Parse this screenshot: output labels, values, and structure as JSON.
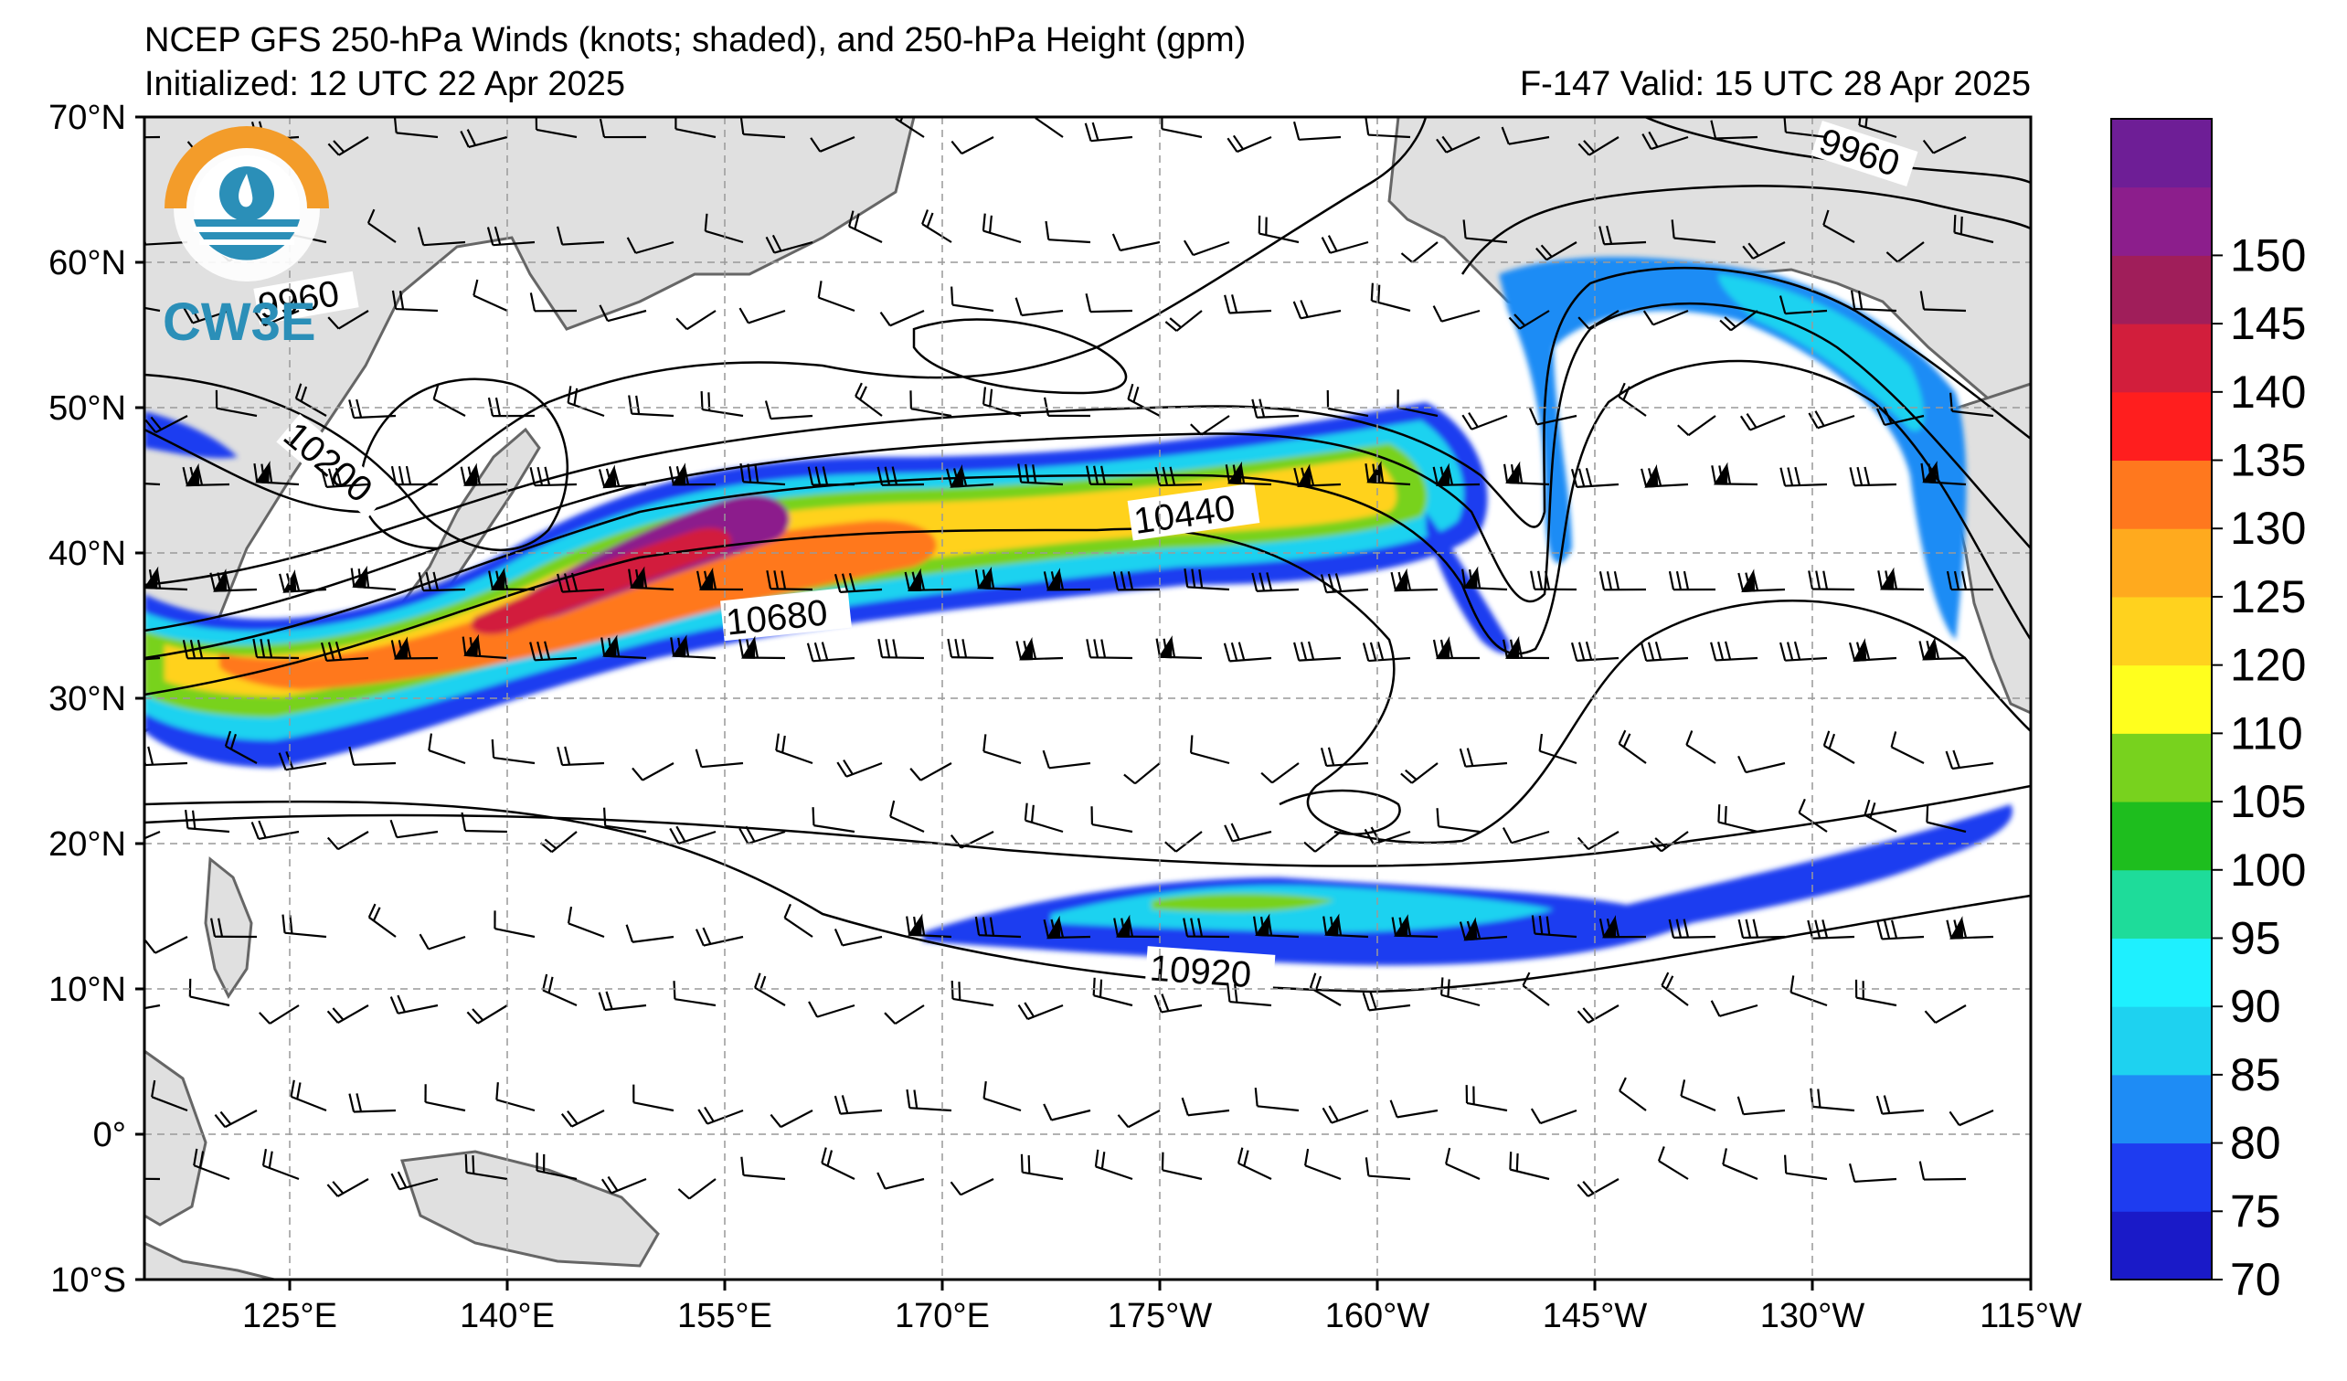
{
  "header": {
    "title": "NCEP GFS 250-hPa Winds (knots; shaded), and 250-hPa Height (gpm)",
    "initialized": "Initialized: 12 UTC 22 Apr 2025",
    "valid": "F-147  Valid: 15 UTC 28 Apr 2025"
  },
  "logo": {
    "text": "CW3E",
    "icon": "cw3e-logo-icon"
  },
  "map": {
    "lat_ticks": [
      "70°N",
      "60°N",
      "50°N",
      "40°N",
      "30°N",
      "20°N",
      "10°N",
      "0°",
      "10°S"
    ],
    "lon_ticks": [
      "125°E",
      "140°E",
      "155°E",
      "170°E",
      "175°W",
      "160°W",
      "145°W",
      "130°W",
      "115°W"
    ],
    "contour_labels": [
      "9960",
      "9960",
      "10200",
      "10440",
      "10680",
      "10920"
    ],
    "colors": {
      "land": "#e0e0e0",
      "coast": "#666666",
      "grid": "#999999"
    }
  },
  "colorbar": {
    "ticks": [
      "70",
      "75",
      "80",
      "85",
      "90",
      "95",
      "100",
      "105",
      "110",
      "120",
      "125",
      "130",
      "135",
      "140",
      "145",
      "150"
    ],
    "colors": [
      "#1a1ac8",
      "#1e3cf0",
      "#1e8cf5",
      "#1ed2f0",
      "#1ef0ff",
      "#1edc9a",
      "#1ebe1e",
      "#78d21e",
      "#ffff1e",
      "#ffd21e",
      "#ffaa1e",
      "#ff781e",
      "#ff1e1e",
      "#d21e3c",
      "#a01e5a",
      "#8c1e8c",
      "#6e1e96"
    ]
  }
}
